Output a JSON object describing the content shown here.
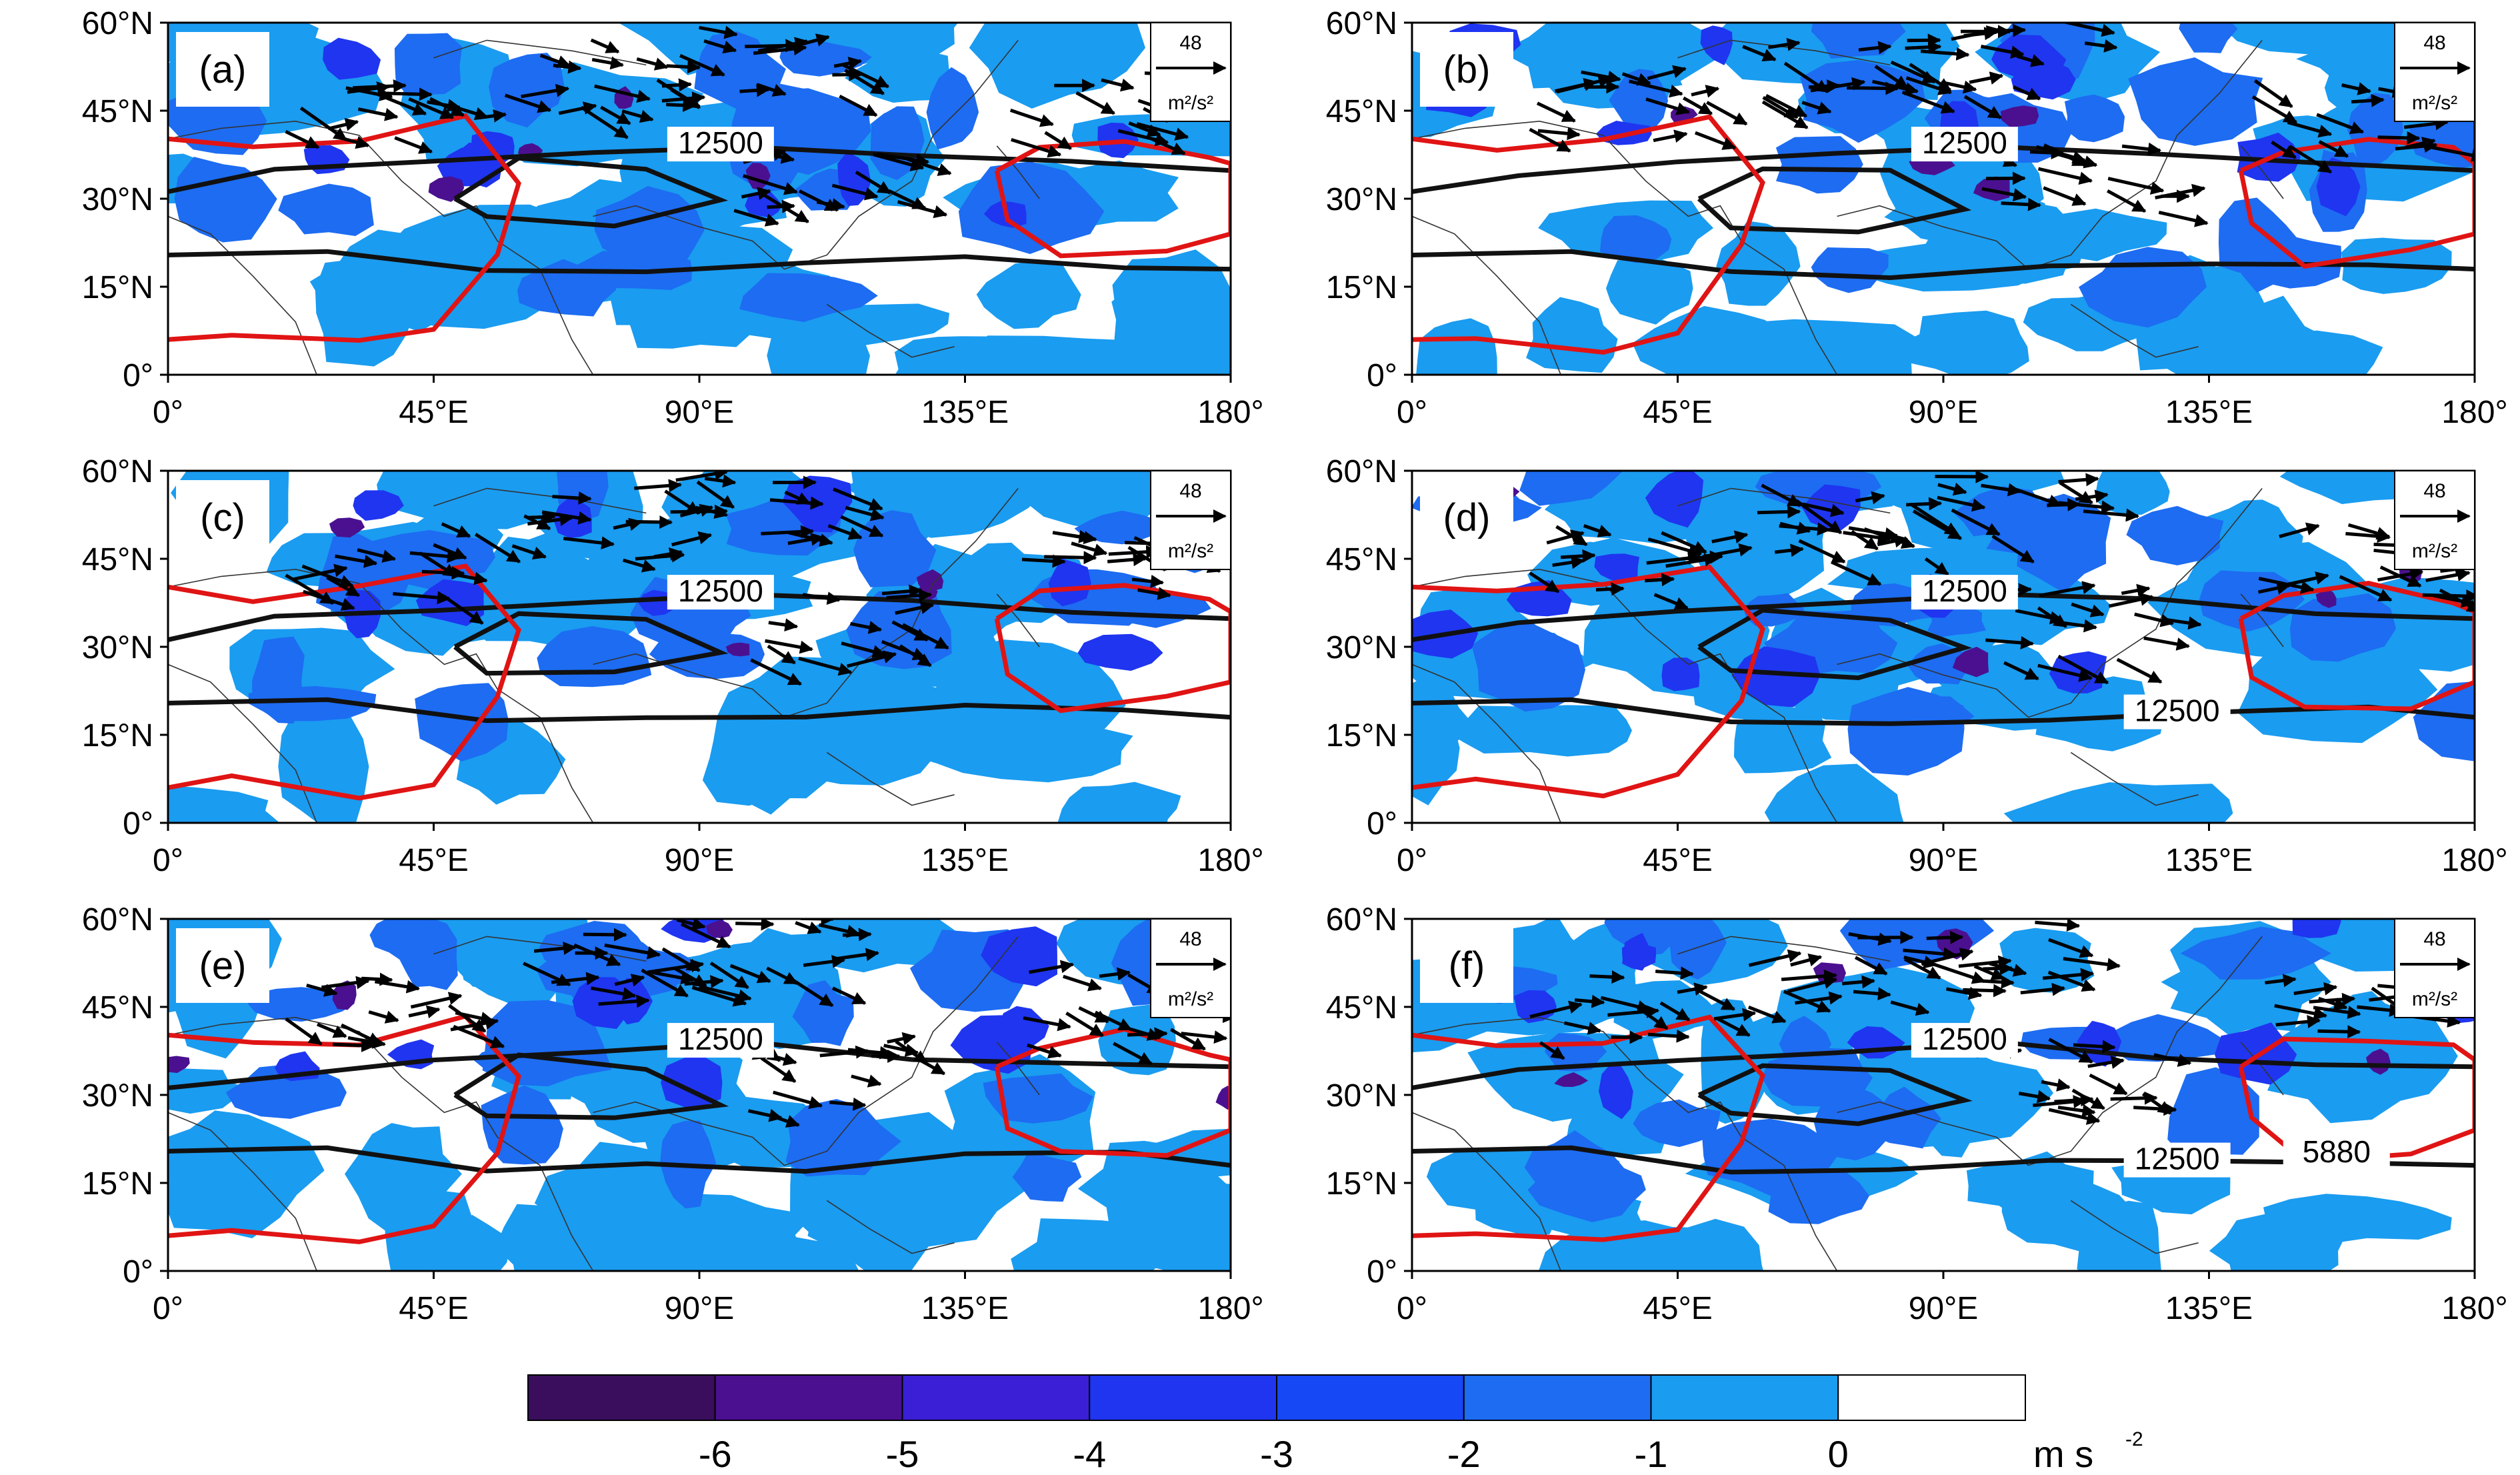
{
  "colors": {
    "shade_levels": [
      "#3a0e5c",
      "#4b1090",
      "#3a1fd6",
      "#1f35f0",
      "#1748f5",
      "#1d6cf2",
      "#1a9cf0",
      "#ffffff"
    ],
    "contour_black": "#111111",
    "contour_red": "#e01414",
    "coast": "#333333"
  },
  "axes": {
    "x_ticks": [
      "0°",
      "45°E",
      "90°E",
      "135°E",
      "180°"
    ],
    "y_ticks": [
      "60°N",
      "45°N",
      "30°N",
      "15°N",
      "0°"
    ]
  },
  "reference_vector": {
    "magnitude": "48",
    "unit": "m²/s²"
  },
  "panels": [
    {
      "id": "a",
      "label": "(a)",
      "contour_labels": [
        "12500"
      ]
    },
    {
      "id": "b",
      "label": "(b)",
      "contour_labels": [
        "12500"
      ]
    },
    {
      "id": "c",
      "label": "(c)",
      "contour_labels": [
        "12500"
      ]
    },
    {
      "id": "d",
      "label": "(d)",
      "contour_labels": [
        "12500",
        "12500"
      ]
    },
    {
      "id": "e",
      "label": "(e)",
      "contour_labels": [
        "12500"
      ]
    },
    {
      "id": "f",
      "label": "(f)",
      "contour_labels": [
        "12500",
        "12500",
        "5880"
      ]
    }
  ],
  "colorbar": {
    "labels": [
      "-6",
      "-5",
      "-4",
      "-3",
      "-2",
      "-1",
      "0"
    ],
    "unit": "m s",
    "unit_exp": "-2"
  }
}
